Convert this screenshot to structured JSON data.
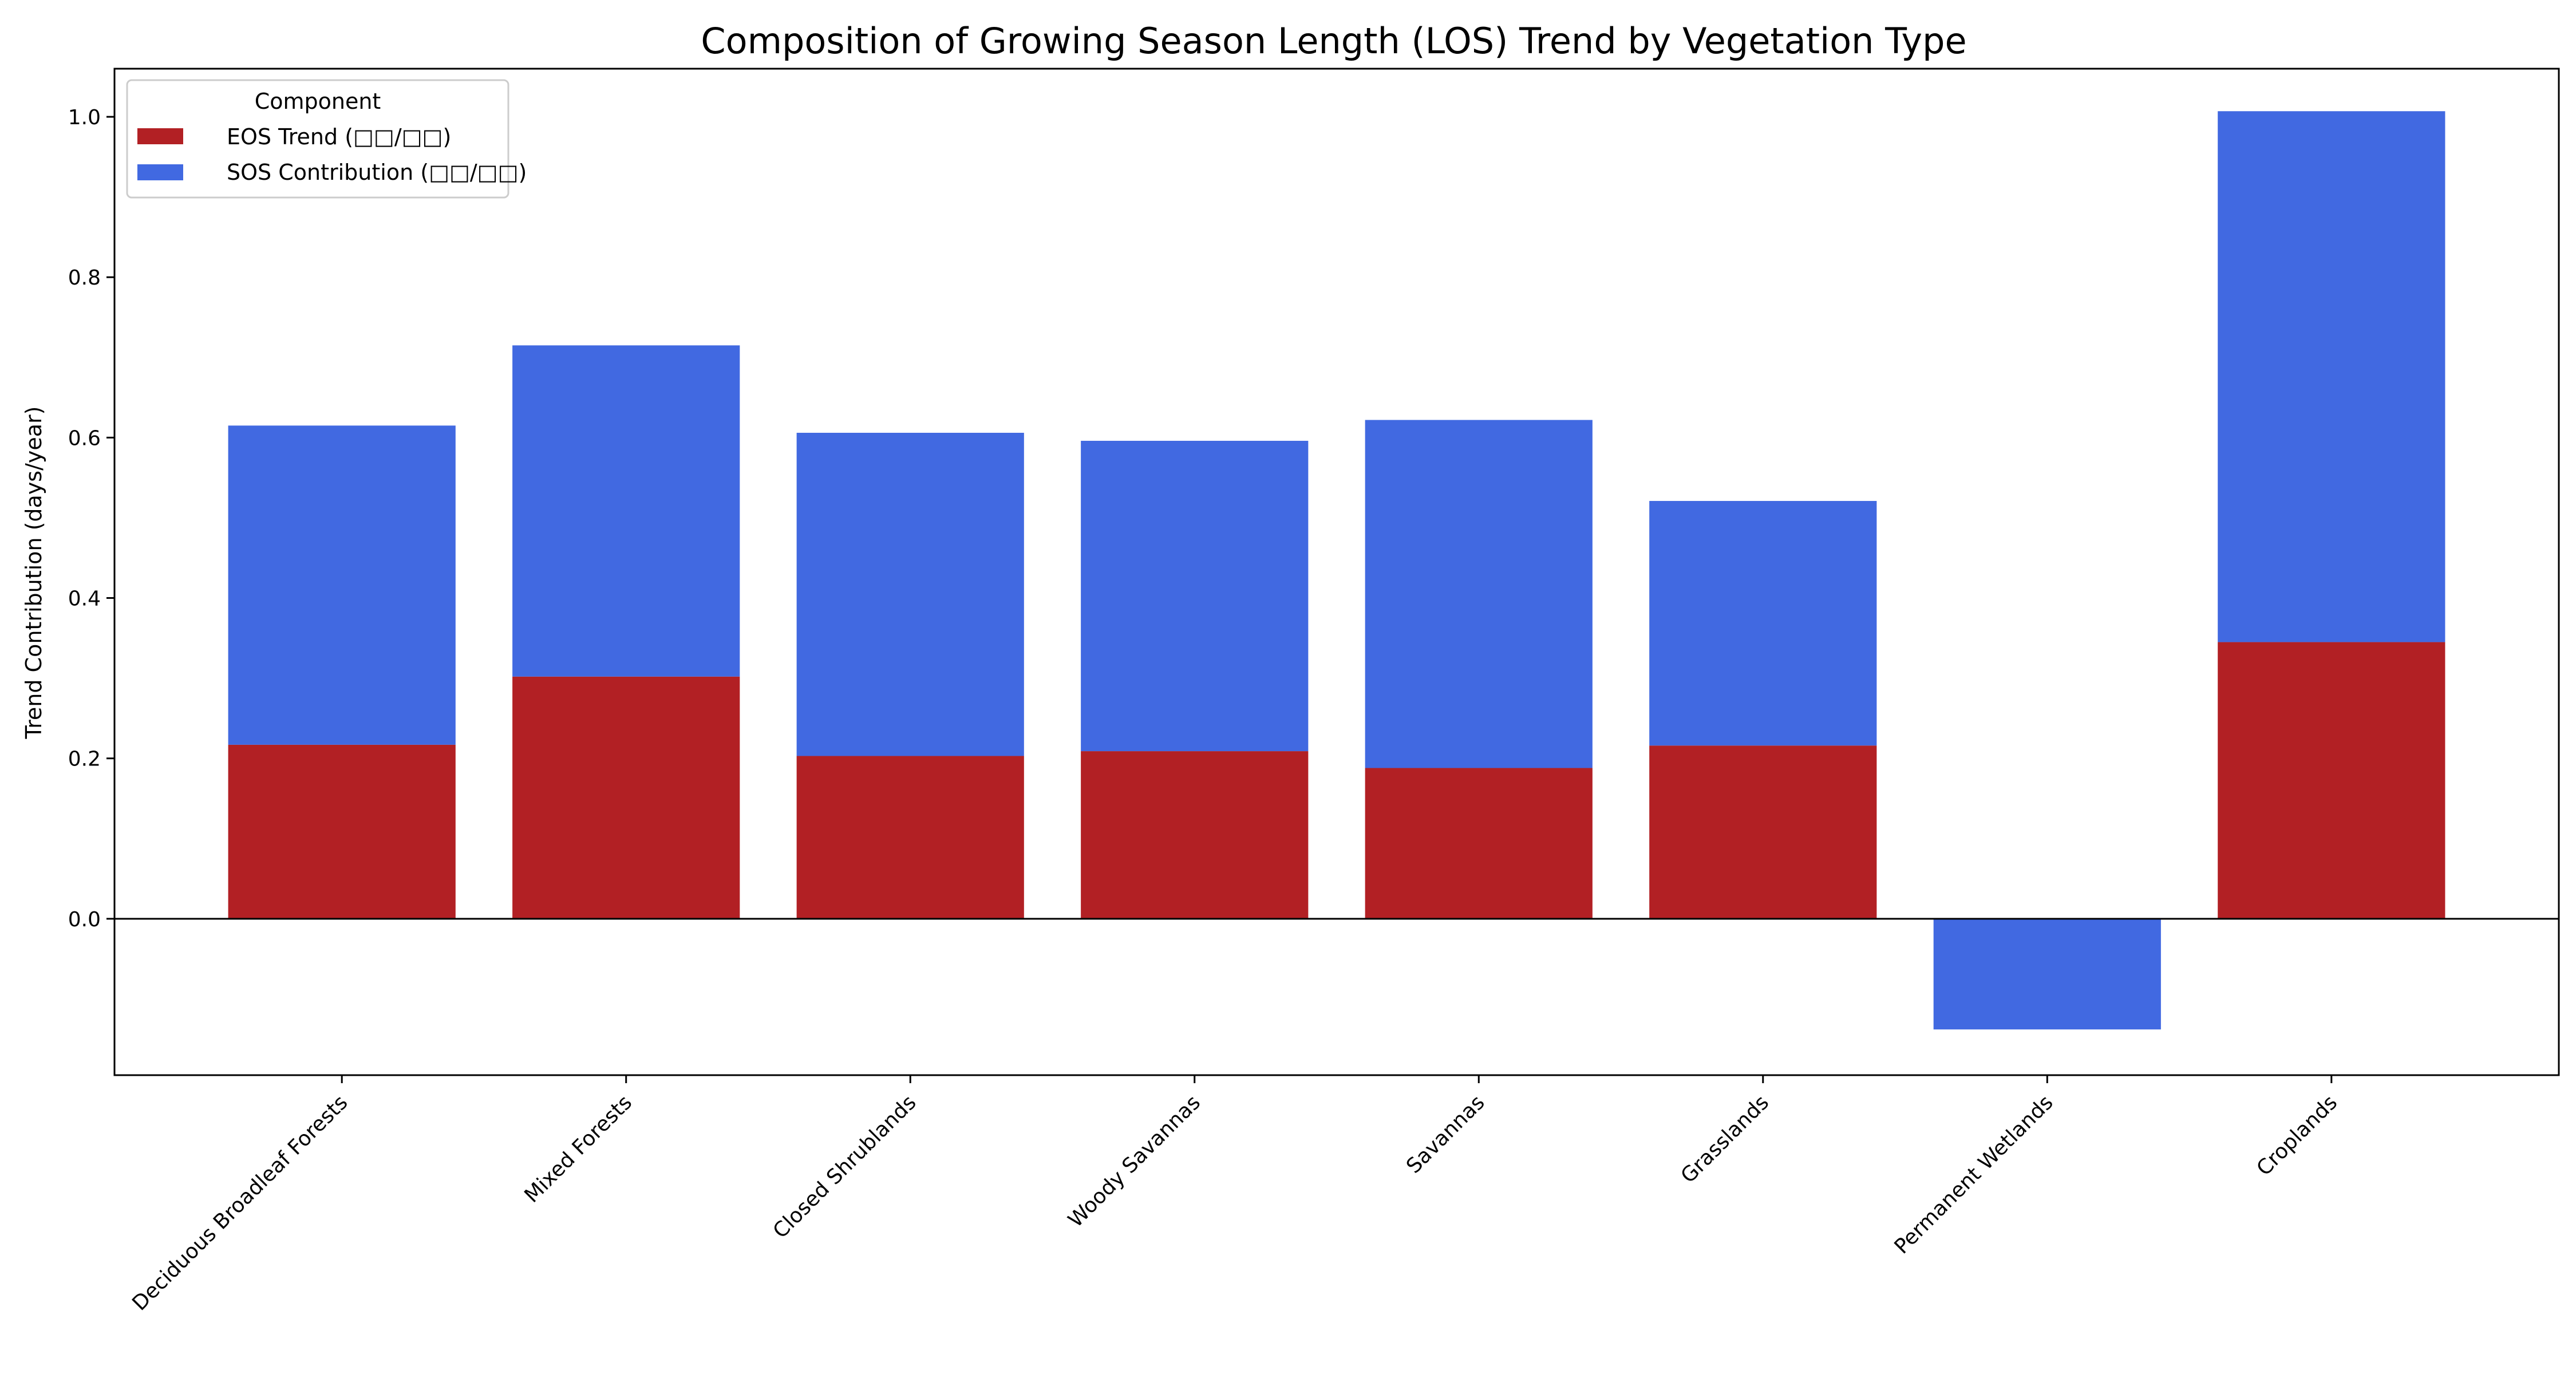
{
  "chart_data": {
    "type": "bar",
    "stacked": true,
    "title": "Composition of Growing Season Length (LOS) Trend by Vegetation Type",
    "xlabel": "",
    "ylabel": "Trend Contribution (days/year)",
    "ylim": [
      -0.195,
      1.06
    ],
    "yticks": [
      0.0,
      0.2,
      0.4,
      0.6,
      0.8,
      1.0
    ],
    "ytick_labels": [
      "0.0",
      "0.2",
      "0.4",
      "0.6",
      "0.8",
      "1.0"
    ],
    "categories": [
      "Deciduous Broadleaf Forests",
      "Mixed Forests",
      "Closed Shrublands",
      "Woody Savannas",
      "Savannas",
      "Grasslands",
      "Permanent Wetlands",
      "Croplands"
    ],
    "series": [
      {
        "name": "EOS Trend (□□/□□)",
        "color": "#b22024",
        "values": [
          0.217,
          0.302,
          0.203,
          0.209,
          0.188,
          0.216,
          0.0,
          0.345
        ]
      },
      {
        "name": "SOS Contribution (□□/□□)",
        "color": "#4169e1",
        "values": [
          0.398,
          0.413,
          0.403,
          0.387,
          0.434,
          0.305,
          -0.138,
          0.662
        ]
      }
    ],
    "legend": {
      "title": "Component",
      "position": "upper-left"
    },
    "grid": false,
    "zero_line": true
  }
}
